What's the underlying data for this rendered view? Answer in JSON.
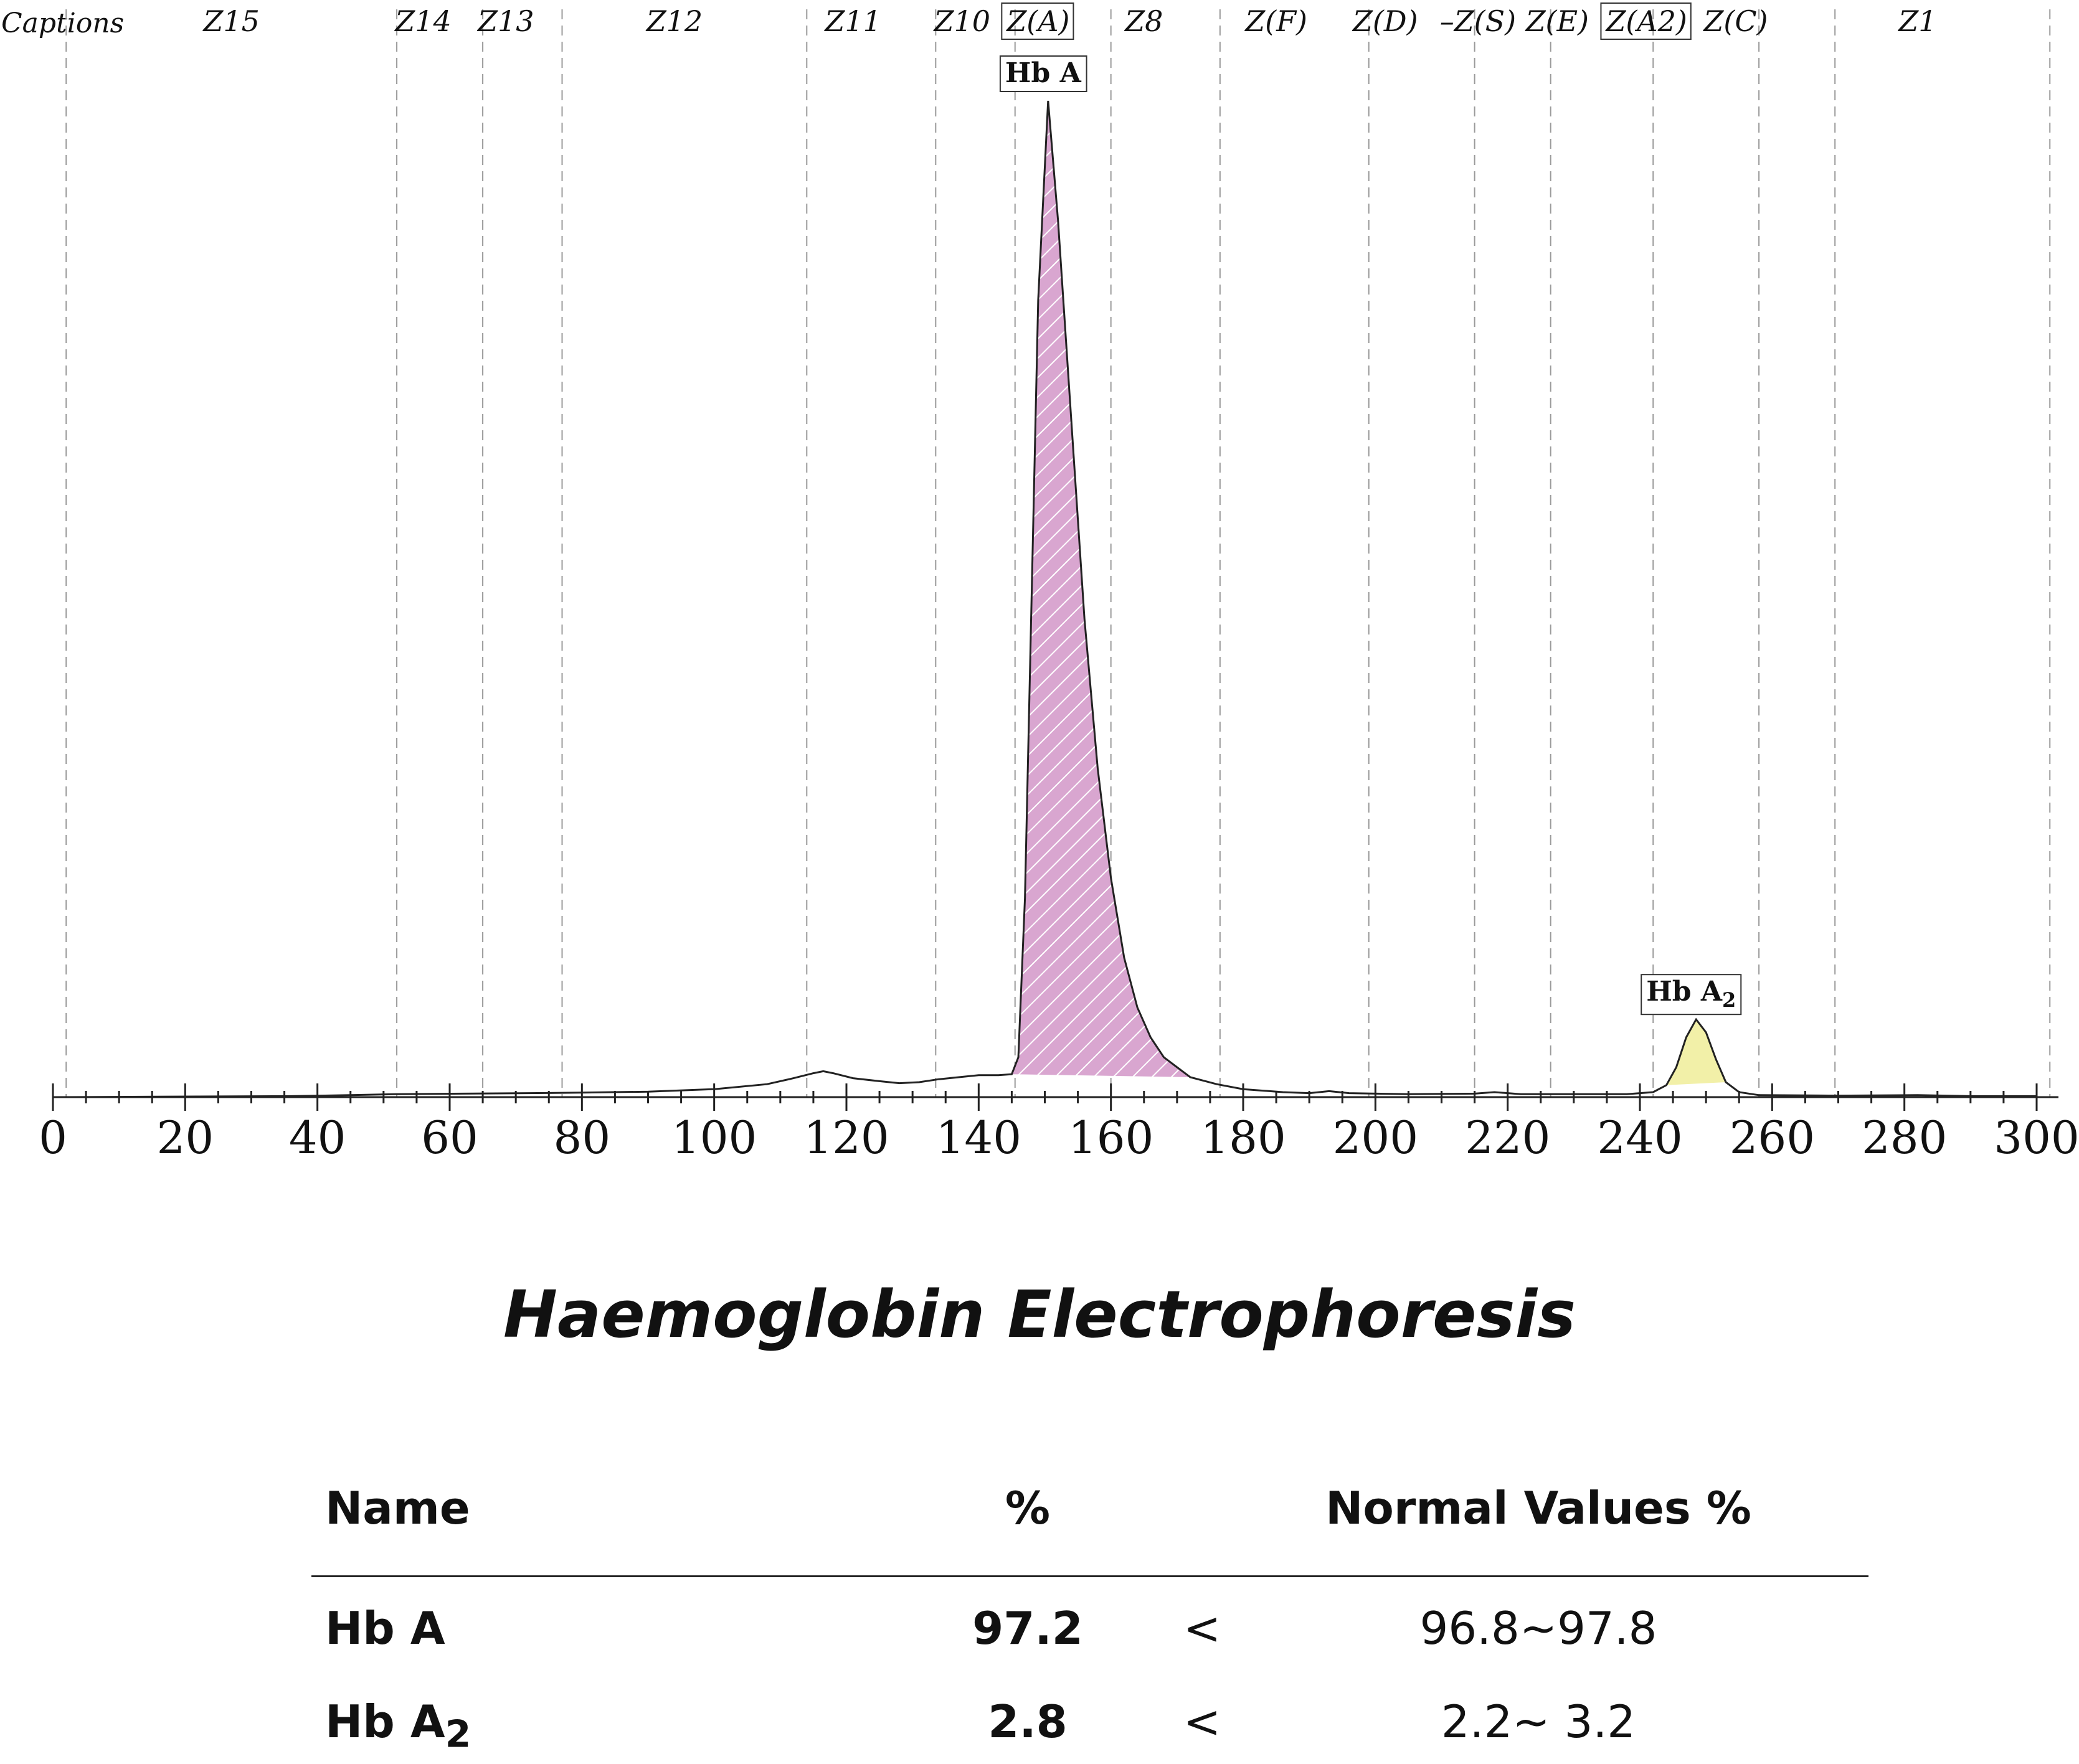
{
  "chart_data": {
    "type": "line",
    "title": "Haemoglobin Electrophoresis",
    "xlabel": "",
    "ylabel": "",
    "xlim": [
      0,
      300
    ],
    "ylim": [
      0,
      100
    ],
    "x_ticks": [
      "0",
      "20",
      "40",
      "60",
      "80",
      "100",
      "120",
      "140",
      "160",
      "180",
      "200",
      "220",
      "240",
      "260",
      "280",
      "300"
    ],
    "captions_label": "Captions",
    "zones": [
      {
        "label": "Z15",
        "center": 27,
        "boxed": false
      },
      {
        "label": "Z14",
        "center": 56,
        "boxed": false
      },
      {
        "label": "Z13",
        "center": 68.5,
        "boxed": false
      },
      {
        "label": "Z12",
        "center": 94,
        "boxed": false
      },
      {
        "label": "Z11",
        "center": 121,
        "boxed": false
      },
      {
        "label": "Z10",
        "center": 137.5,
        "boxed": false
      },
      {
        "label": "Z(A)",
        "center": 149,
        "boxed": true
      },
      {
        "label": "Z8",
        "center": 165,
        "boxed": false
      },
      {
        "label": "Z(F)",
        "center": 185,
        "boxed": false
      },
      {
        "label": "Z(D)",
        "center": 201.5,
        "boxed": false
      },
      {
        "label": "–Z(S)",
        "center": 215.5,
        "boxed": false
      },
      {
        "label": "Z(E)",
        "center": 227.5,
        "boxed": false
      },
      {
        "label": "Z(A2)",
        "center": 241,
        "boxed": true
      },
      {
        "label": "Z(C)",
        "center": 254.5,
        "boxed": false
      },
      {
        "label": "Z1",
        "center": 282,
        "boxed": false
      }
    ],
    "zone_boundaries": [
      2,
      52,
      65,
      77,
      114,
      133.5,
      145.5,
      160,
      176.5,
      199,
      215,
      226.5,
      242,
      258,
      269.5,
      302
    ],
    "peaks": [
      {
        "name": "Hb A",
        "label_base": "Hb A",
        "label_sub": "",
        "x": 150.5,
        "height": 100,
        "fill_from": 145,
        "fill_to": 172,
        "color": "#d9a6d0",
        "hatch": true
      },
      {
        "name": "Hb A2",
        "label_base": "Hb A",
        "label_sub": "2",
        "x": 248.5,
        "height": 7.8,
        "fill_from": 244,
        "fill_to": 253,
        "color": "#f2f0a8",
        "hatch": false
      }
    ],
    "trace": [
      [
        0,
        0
      ],
      [
        36,
        0.1
      ],
      [
        45,
        0.2
      ],
      [
        52,
        0.3
      ],
      [
        62,
        0.35
      ],
      [
        72,
        0.4
      ],
      [
        80,
        0.45
      ],
      [
        90,
        0.55
      ],
      [
        100,
        0.8
      ],
      [
        108,
        1.3
      ],
      [
        112,
        1.9
      ],
      [
        115,
        2.4
      ],
      [
        116.5,
        2.6
      ],
      [
        118,
        2.4
      ],
      [
        121,
        1.9
      ],
      [
        125,
        1.6
      ],
      [
        128,
        1.4
      ],
      [
        131,
        1.5
      ],
      [
        134,
        1.8
      ],
      [
        137,
        2.0
      ],
      [
        140,
        2.2
      ],
      [
        143,
        2.2
      ],
      [
        145,
        2.3
      ],
      [
        146,
        4
      ],
      [
        147,
        20
      ],
      [
        148,
        50
      ],
      [
        149,
        80
      ],
      [
        150.5,
        100
      ],
      [
        152,
        88
      ],
      [
        154,
        68
      ],
      [
        156,
        48
      ],
      [
        158,
        33
      ],
      [
        160,
        22
      ],
      [
        162,
        14
      ],
      [
        164,
        9
      ],
      [
        166,
        6
      ],
      [
        168,
        4
      ],
      [
        170,
        3
      ],
      [
        172,
        2
      ],
      [
        176,
        1.3
      ],
      [
        180,
        0.8
      ],
      [
        186,
        0.5
      ],
      [
        190,
        0.4
      ],
      [
        193,
        0.6
      ],
      [
        196,
        0.4
      ],
      [
        205,
        0.3
      ],
      [
        215,
        0.35
      ],
      [
        218,
        0.5
      ],
      [
        222,
        0.3
      ],
      [
        230,
        0.3
      ],
      [
        238,
        0.3
      ],
      [
        242,
        0.5
      ],
      [
        244,
        1.2
      ],
      [
        245.5,
        3
      ],
      [
        247,
        6
      ],
      [
        248.5,
        7.8
      ],
      [
        250,
        6.5
      ],
      [
        251.5,
        3.8
      ],
      [
        253,
        1.5
      ],
      [
        255,
        0.5
      ],
      [
        258,
        0.2
      ],
      [
        270,
        0.15
      ],
      [
        282,
        0.2
      ],
      [
        290,
        0.1
      ],
      [
        300,
        0.1
      ]
    ]
  },
  "results": {
    "headers": {
      "name": "Name",
      "pct": "%",
      "normal": "Normal Values %"
    },
    "rows": [
      {
        "name_base": "Hb A",
        "name_sub": "",
        "pct": "97.2",
        "op": "<",
        "normal": "96.8~97.8"
      },
      {
        "name_base": "Hb A",
        "name_sub": "2",
        "pct": "2.8",
        "op": "<",
        "normal": "2.2~  3.2"
      }
    ]
  }
}
